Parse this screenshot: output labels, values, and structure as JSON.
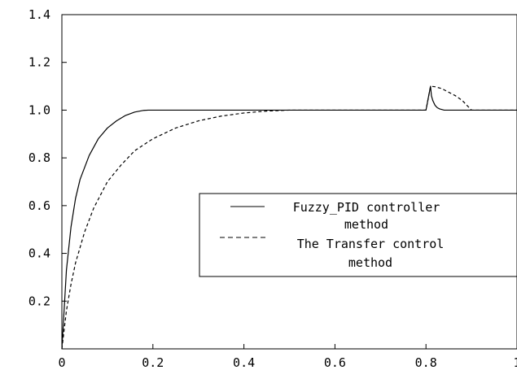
{
  "chart_data": {
    "type": "line",
    "xlim": [
      0,
      1.0
    ],
    "ylim": [
      0,
      1.4
    ],
    "x_ticks": [
      {
        "value": 0,
        "label": "0"
      },
      {
        "value": 0.2,
        "label": "0.2"
      },
      {
        "value": 0.4,
        "label": "0.4"
      },
      {
        "value": 0.6,
        "label": "0.6"
      },
      {
        "value": 0.8,
        "label": "0.8"
      },
      {
        "value": 1.0,
        "label": "1"
      }
    ],
    "y_ticks": [
      {
        "value": 0.2,
        "label": "0.2"
      },
      {
        "value": 0.4,
        "label": "0.4"
      },
      {
        "value": 0.6,
        "label": "0.6"
      },
      {
        "value": 0.8,
        "label": "0.8"
      },
      {
        "value": 1.0,
        "label": "1.0"
      },
      {
        "value": 1.2,
        "label": "1.2"
      },
      {
        "value": 1.4,
        "label": "1.4"
      }
    ],
    "grid": false,
    "legend_position": "center-right",
    "series": [
      {
        "name": "Fuzzy_PID controller method",
        "name_lines": [
          "Fuzzy_PID controller",
          "method"
        ],
        "style": "solid",
        "color": "#000000",
        "x": [
          0,
          0.01,
          0.02,
          0.03,
          0.04,
          0.06,
          0.08,
          0.1,
          0.12,
          0.14,
          0.16,
          0.18,
          0.19,
          0.3,
          0.5,
          0.7,
          0.8,
          0.81,
          0.812,
          0.815,
          0.82,
          0.825,
          0.83,
          0.84,
          0.85,
          0.9,
          1.0
        ],
        "y": [
          0,
          0.33,
          0.51,
          0.63,
          0.71,
          0.81,
          0.88,
          0.925,
          0.955,
          0.978,
          0.992,
          0.999,
          1.0,
          1.0,
          1.0,
          1.0,
          1.0,
          1.1,
          1.06,
          1.04,
          1.02,
          1.01,
          1.005,
          1.0,
          1.0,
          1.0,
          1.0
        ]
      },
      {
        "name": "The Transfer control method",
        "name_lines": [
          "The Transfer control",
          "method"
        ],
        "style": "dashed",
        "color": "#000000",
        "x": [
          0,
          0.01,
          0.02,
          0.03,
          0.05,
          0.07,
          0.1,
          0.13,
          0.16,
          0.2,
          0.25,
          0.3,
          0.35,
          0.4,
          0.45,
          0.5,
          0.6,
          0.7,
          0.8,
          0.81,
          0.82,
          0.835,
          0.85,
          0.865,
          0.88,
          0.89,
          0.895,
          0.9,
          1.0
        ],
        "y": [
          0,
          0.16,
          0.27,
          0.36,
          0.49,
          0.59,
          0.7,
          0.77,
          0.83,
          0.88,
          0.925,
          0.955,
          0.975,
          0.988,
          0.996,
          1.0,
          1.0,
          1.0,
          1.0,
          1.1,
          1.098,
          1.09,
          1.075,
          1.06,
          1.04,
          1.02,
          1.01,
          1.0,
          1.0
        ]
      }
    ]
  }
}
